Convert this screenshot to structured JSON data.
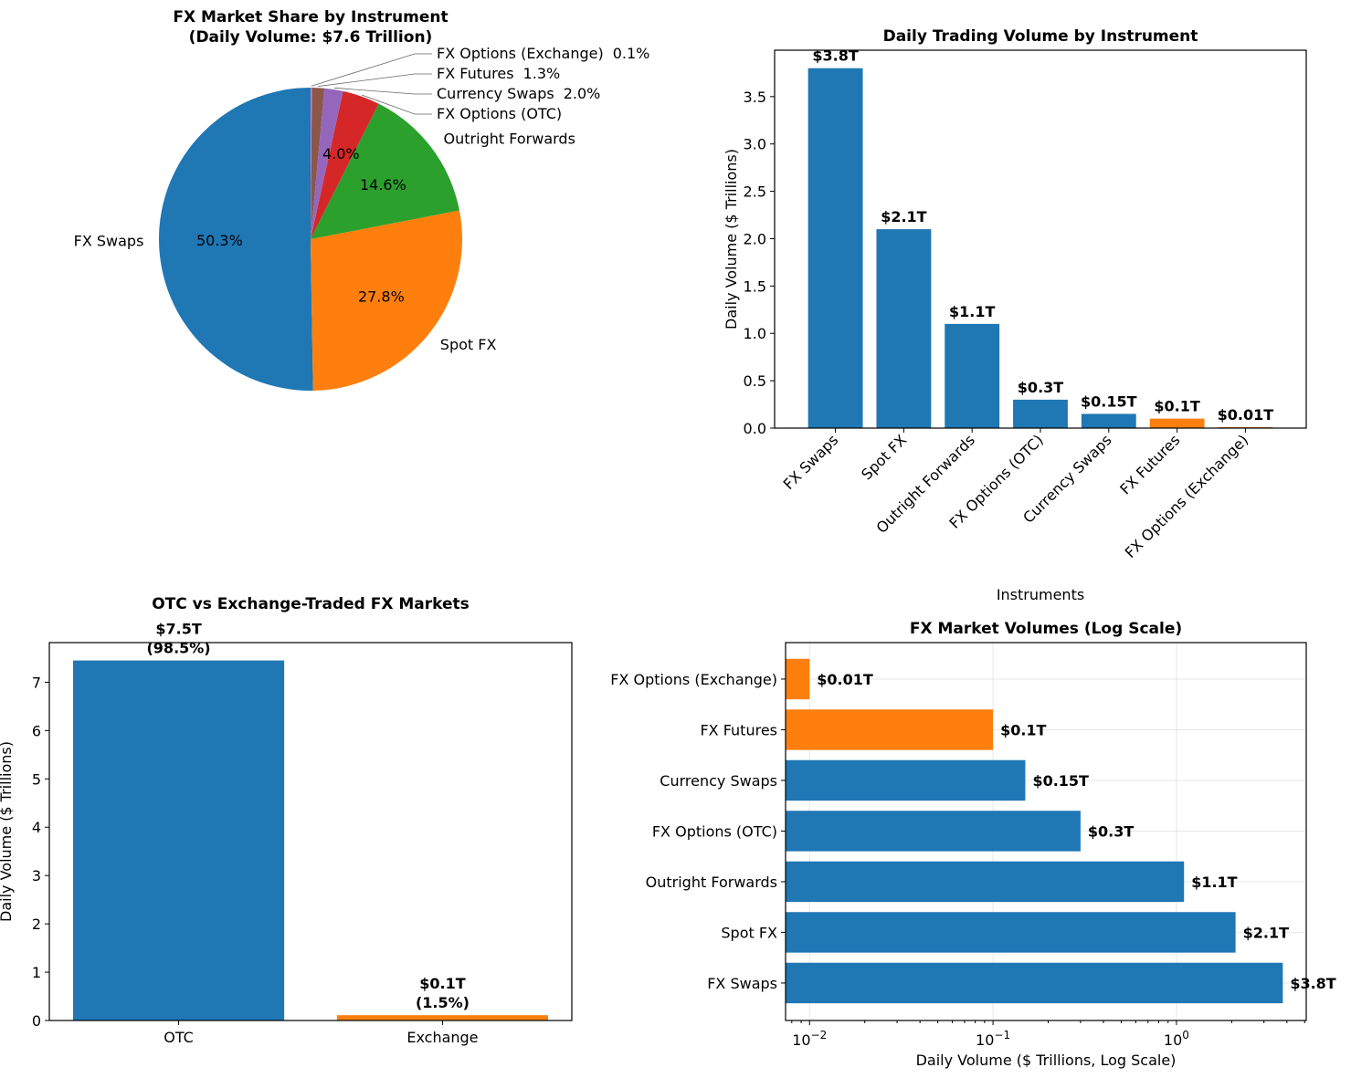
{
  "colors": {
    "blue": "#1f77b4",
    "orange": "#ff7f0e",
    "pie": [
      "#1f77b4",
      "#ff7f0e",
      "#2ca02c",
      "#d62728",
      "#9467bd",
      "#8c564b",
      "#e377c2"
    ]
  },
  "chart_data": [
    {
      "type": "pie",
      "title": "FX Market Share by Instrument\n(Daily Volume: $7.6 Trillion)",
      "start_angle": 90,
      "labels": [
        "FX Swaps",
        "Spot FX",
        "Outright Forwards",
        "FX Options (OTC)",
        "Currency Swaps",
        "FX Futures",
        "FX Options (Exchange)"
      ],
      "values": [
        3.8,
        2.1,
        1.1,
        0.3,
        0.15,
        0.1,
        0.01
      ],
      "pct_labels": [
        "50.3%",
        "27.8%",
        "14.6%",
        "4.0%",
        "2.0%",
        "1.3%",
        "0.1%"
      ]
    },
    {
      "type": "bar",
      "title": "Daily Trading Volume by Instrument",
      "xlabel": "Instruments",
      "ylabel": "Daily Volume ($ Trillions)",
      "categories": [
        "FX Swaps",
        "Spot FX",
        "Outright Forwards",
        "FX Options (OTC)",
        "Currency Swaps",
        "FX Futures",
        "FX Options (Exchange)"
      ],
      "values": [
        3.8,
        2.1,
        1.1,
        0.3,
        0.15,
        0.1,
        0.01
      ],
      "bar_colors": [
        "blue",
        "blue",
        "blue",
        "blue",
        "blue",
        "orange",
        "orange"
      ],
      "data_labels": [
        "$3.8T",
        "$2.1T",
        "$1.1T",
        "$0.3T",
        "$0.15T",
        "$0.1T",
        "$0.01T"
      ],
      "ylim": [
        0,
        3.99
      ],
      "yticks": [
        0,
        0.5,
        1,
        1.5,
        2,
        2.5,
        3,
        3.5
      ],
      "ytick_labels": [
        "0.0",
        "0.5",
        "1.0",
        "1.5",
        "2.0",
        "2.5",
        "3.0",
        "3.5"
      ],
      "grid": false
    },
    {
      "type": "bar",
      "title": "OTC vs Exchange-Traded FX Markets",
      "xlabel": "",
      "ylabel": "Daily Volume ($ Trillions)",
      "categories": [
        "OTC",
        "Exchange"
      ],
      "values": [
        7.45,
        0.11
      ],
      "bar_colors": [
        "blue",
        "orange"
      ],
      "data_labels": [
        [
          "$7.5T",
          "(98.5%)"
        ],
        [
          "$0.1T",
          "(1.5%)"
        ]
      ],
      "ylim": [
        0,
        7.82
      ],
      "yticks": [
        0,
        1,
        2,
        3,
        4,
        5,
        6,
        7
      ],
      "ytick_labels": [
        "0",
        "1",
        "2",
        "3",
        "4",
        "5",
        "6",
        "7"
      ],
      "grid": false
    },
    {
      "type": "bar",
      "orientation": "horizontal",
      "title": "FX Market Volumes (Log Scale)",
      "xlabel": "Daily Volume ($ Trillions, Log Scale)",
      "x_scale": "log",
      "xlim": [
        0.0074,
        5.1
      ],
      "xticks": [
        0.01,
        0.1,
        1
      ],
      "xtick_labels": [
        [
          "10",
          "−2"
        ],
        [
          "10",
          "−1"
        ],
        [
          "10",
          "0"
        ]
      ],
      "categories": [
        "FX Swaps",
        "Spot FX",
        "Outright Forwards",
        "FX Options (OTC)",
        "Currency Swaps",
        "FX Futures",
        "FX Options (Exchange)"
      ],
      "values": [
        3.8,
        2.1,
        1.1,
        0.3,
        0.15,
        0.1,
        0.01
      ],
      "bar_colors": [
        "blue",
        "blue",
        "blue",
        "blue",
        "blue",
        "orange",
        "orange"
      ],
      "data_labels": [
        "$3.8T",
        "$2.1T",
        "$1.1T",
        "$0.3T",
        "$0.15T",
        "$0.1T",
        "$0.01T"
      ],
      "grid": true
    }
  ]
}
